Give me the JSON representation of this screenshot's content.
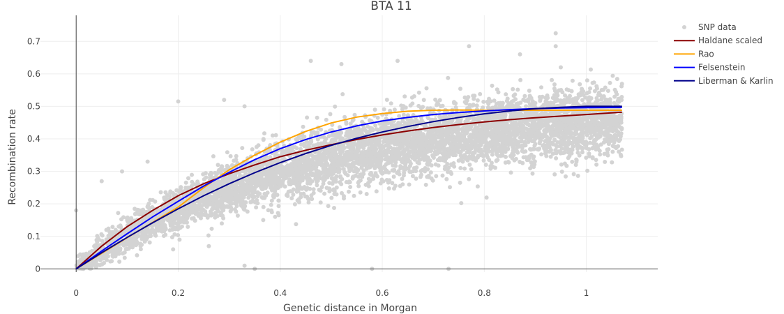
{
  "chart_data": {
    "type": "scatter",
    "title": "BTA 11",
    "xlabel": "Genetic distance in Morgan",
    "ylabel": "Recombination rate",
    "xlim": [
      -0.07,
      1.14
    ],
    "ylim": [
      -0.01,
      0.78
    ],
    "x_ticks": [
      0,
      0.2,
      0.4,
      0.6,
      0.8,
      1
    ],
    "x_tick_labels": [
      "0",
      "0.2",
      "0.4",
      "0.6",
      "0.8",
      "1"
    ],
    "y_ticks": [
      0,
      0.1,
      0.2,
      0.3,
      0.4,
      0.5,
      0.6,
      0.7
    ],
    "y_tick_labels": [
      "0",
      "0.1",
      "0.2",
      "0.3",
      "0.4",
      "0.5",
      "0.6",
      "0.7"
    ],
    "grid": true,
    "legend_position": "top-right",
    "x_max_data": 1.07,
    "scatter": {
      "name": "SNP data",
      "color": "#d3d3d3",
      "mean_curve": {
        "y_inf": 0.5,
        "rate": 2.3
      },
      "spread": {
        "sd_base": 0.02,
        "sd_slope": 0.06
      },
      "outliers": [
        [
          0.94,
          0.725
        ],
        [
          0.94,
          0.685
        ],
        [
          0.77,
          0.685
        ],
        [
          0.46,
          0.64
        ],
        [
          0.52,
          0.63
        ],
        [
          0.29,
          0.52
        ],
        [
          0.2,
          0.515
        ],
        [
          0.95,
          0.62
        ],
        [
          0.87,
          0.66
        ],
        [
          0.63,
          0.64
        ],
        [
          1.05,
          0.395
        ],
        [
          0.64,
          0.26
        ],
        [
          0.05,
          0.27
        ],
        [
          0.09,
          0.3
        ],
        [
          0.14,
          0.33
        ],
        [
          0.33,
          0.01
        ],
        [
          0.35,
          0.0
        ],
        [
          0.58,
          0.0
        ],
        [
          0.73,
          0.0
        ],
        [
          0.0,
          0.18
        ],
        [
          0.19,
          0.06
        ],
        [
          0.26,
          0.07
        ],
        [
          0.39,
          0.16
        ],
        [
          0.98,
          0.4
        ],
        [
          0.33,
          0.5
        ]
      ]
    },
    "series": [
      {
        "name": "Haldane scaled",
        "color": "#8b0000",
        "x": [
          0,
          0.05,
          0.1,
          0.15,
          0.2,
          0.25,
          0.3,
          0.35,
          0.4,
          0.45,
          0.5,
          0.55,
          0.6,
          0.65,
          0.7,
          0.75,
          0.8,
          0.85,
          0.9,
          0.95,
          1.0,
          1.07
        ],
        "y": [
          0,
          0.07,
          0.13,
          0.18,
          0.225,
          0.262,
          0.293,
          0.32,
          0.345,
          0.365,
          0.382,
          0.398,
          0.412,
          0.424,
          0.435,
          0.444,
          0.452,
          0.459,
          0.465,
          0.47,
          0.475,
          0.482
        ]
      },
      {
        "name": "Rao",
        "color": "#ffa500",
        "x": [
          0,
          0.05,
          0.1,
          0.15,
          0.2,
          0.25,
          0.3,
          0.35,
          0.4,
          0.45,
          0.5,
          0.55,
          0.6,
          0.65,
          0.7,
          0.75,
          0.8,
          0.85,
          0.9,
          0.95,
          1.0,
          1.07
        ],
        "y": [
          0,
          0.048,
          0.096,
          0.143,
          0.19,
          0.25,
          0.305,
          0.35,
          0.39,
          0.423,
          0.449,
          0.467,
          0.478,
          0.485,
          0.488,
          0.489,
          0.488,
          0.488,
          0.488,
          0.488,
          0.488,
          0.488
        ]
      },
      {
        "name": "Felsenstein",
        "color": "#0000ff",
        "x": [
          0,
          0.05,
          0.1,
          0.15,
          0.2,
          0.25,
          0.3,
          0.35,
          0.4,
          0.45,
          0.5,
          0.55,
          0.6,
          0.65,
          0.7,
          0.75,
          0.8,
          0.85,
          0.9,
          0.95,
          1.0,
          1.07
        ],
        "y": [
          0,
          0.055,
          0.108,
          0.16,
          0.208,
          0.255,
          0.297,
          0.336,
          0.37,
          0.398,
          0.421,
          0.44,
          0.455,
          0.466,
          0.475,
          0.481,
          0.486,
          0.49,
          0.493,
          0.495,
          0.496,
          0.497
        ]
      },
      {
        "name": "Liberman & Karlin",
        "color": "#00008b",
        "x": [
          0,
          0.05,
          0.1,
          0.15,
          0.2,
          0.25,
          0.3,
          0.35,
          0.4,
          0.45,
          0.5,
          0.55,
          0.6,
          0.65,
          0.7,
          0.75,
          0.8,
          0.85,
          0.9,
          0.95,
          1.0,
          1.07
        ],
        "y": [
          0,
          0.05,
          0.097,
          0.142,
          0.185,
          0.225,
          0.262,
          0.296,
          0.327,
          0.355,
          0.38,
          0.402,
          0.421,
          0.438,
          0.453,
          0.466,
          0.477,
          0.486,
          0.493,
          0.497,
          0.5,
          0.5
        ]
      }
    ]
  }
}
